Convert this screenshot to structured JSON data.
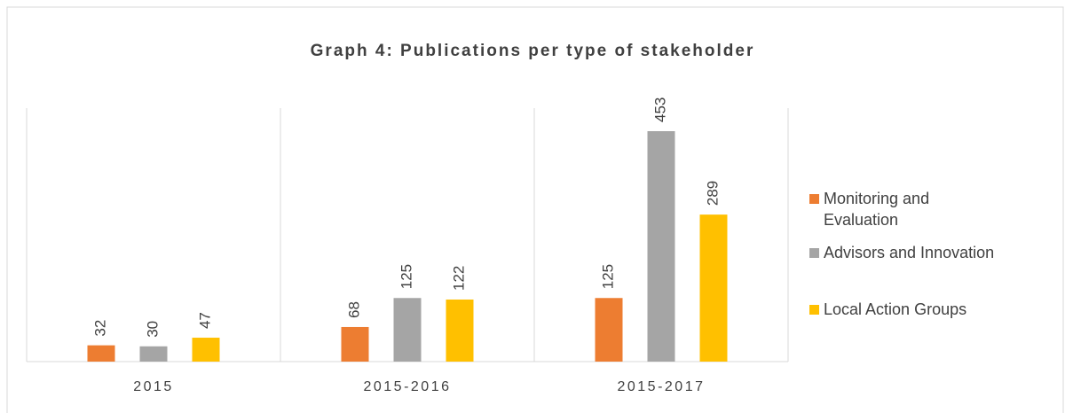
{
  "chart_data": {
    "type": "bar",
    "title": "Graph 4: Publications per type of stakeholder",
    "categories": [
      "2015",
      "2015-2016",
      "2015-2017"
    ],
    "series": [
      {
        "name": "Monitoring and Evaluation",
        "color": "#ed7d31",
        "values": [
          32,
          68,
          125
        ]
      },
      {
        "name": "Advisors and Innovation",
        "color": "#a5a5a5",
        "values": [
          30,
          125,
          453
        ]
      },
      {
        "name": "Local Action Groups",
        "color": "#ffc000",
        "values": [
          47,
          122,
          289
        ]
      }
    ],
    "legend": "right"
  }
}
